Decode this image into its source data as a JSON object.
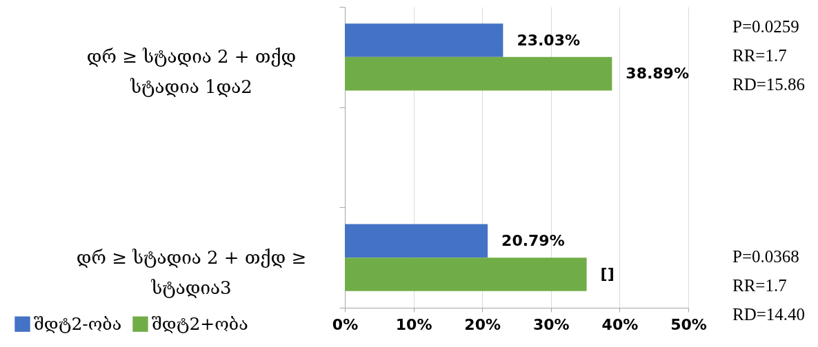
{
  "chart_data": {
    "type": "bar",
    "orientation": "horizontal",
    "categories": [
      "დრ ≥ სტადია 2 + თქდ სტადია 1და2",
      null,
      "დრ ≥ სტადია 2 + თქდ ≥ სტადია3"
    ],
    "series": [
      {
        "name": "შდტ2-ობა",
        "color": "#4472c4",
        "values": [
          23.03,
          null,
          20.79
        ],
        "value_labels": [
          "23.03%",
          null,
          "20.79%"
        ]
      },
      {
        "name": "შდტ2+ობა",
        "color": "#70ad47",
        "values": [
          38.89,
          null,
          35.2
        ],
        "value_labels": [
          "38.89%",
          null,
          "[]"
        ]
      }
    ],
    "xlim": [
      0,
      50
    ],
    "xticks": [
      {
        "value": 0,
        "label": "0%"
      },
      {
        "value": 10,
        "label": "10%"
      },
      {
        "value": 20,
        "label": "20%"
      },
      {
        "value": 30,
        "label": "30%"
      },
      {
        "value": 40,
        "label": "40%"
      },
      {
        "value": 50,
        "label": "50%"
      }
    ],
    "grid": "x",
    "legend": "bottom left",
    "annotations": [
      "P=0.0259",
      "RR=1.7",
      "RD=15.86",
      "P=0.0368",
      "RR=1.7",
      "RD=14.40"
    ]
  }
}
